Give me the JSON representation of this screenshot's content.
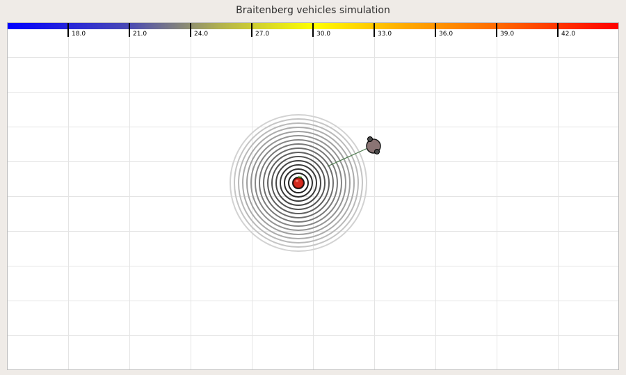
{
  "window": {
    "title": "Braitenberg vehicles simulation"
  },
  "colorbar": {
    "ticks": [
      "18.0",
      "21.0",
      "24.0",
      "27.0",
      "30.0",
      "33.0",
      "36.0",
      "39.0",
      "42.0"
    ],
    "colors": [
      "#0000ff",
      "#4b4bb3",
      "#b3b34d",
      "#ffff00",
      "#ffaa00",
      "#ff6a00",
      "#ff0000"
    ]
  },
  "scene": {
    "source": {
      "icon": "apple-icon",
      "color": "#d42a1e"
    },
    "vehicle": {
      "icon": "vehicle-icon",
      "body_color": "#8a7474"
    },
    "trail_color": "#4c7a4c",
    "ring_count": 16
  }
}
